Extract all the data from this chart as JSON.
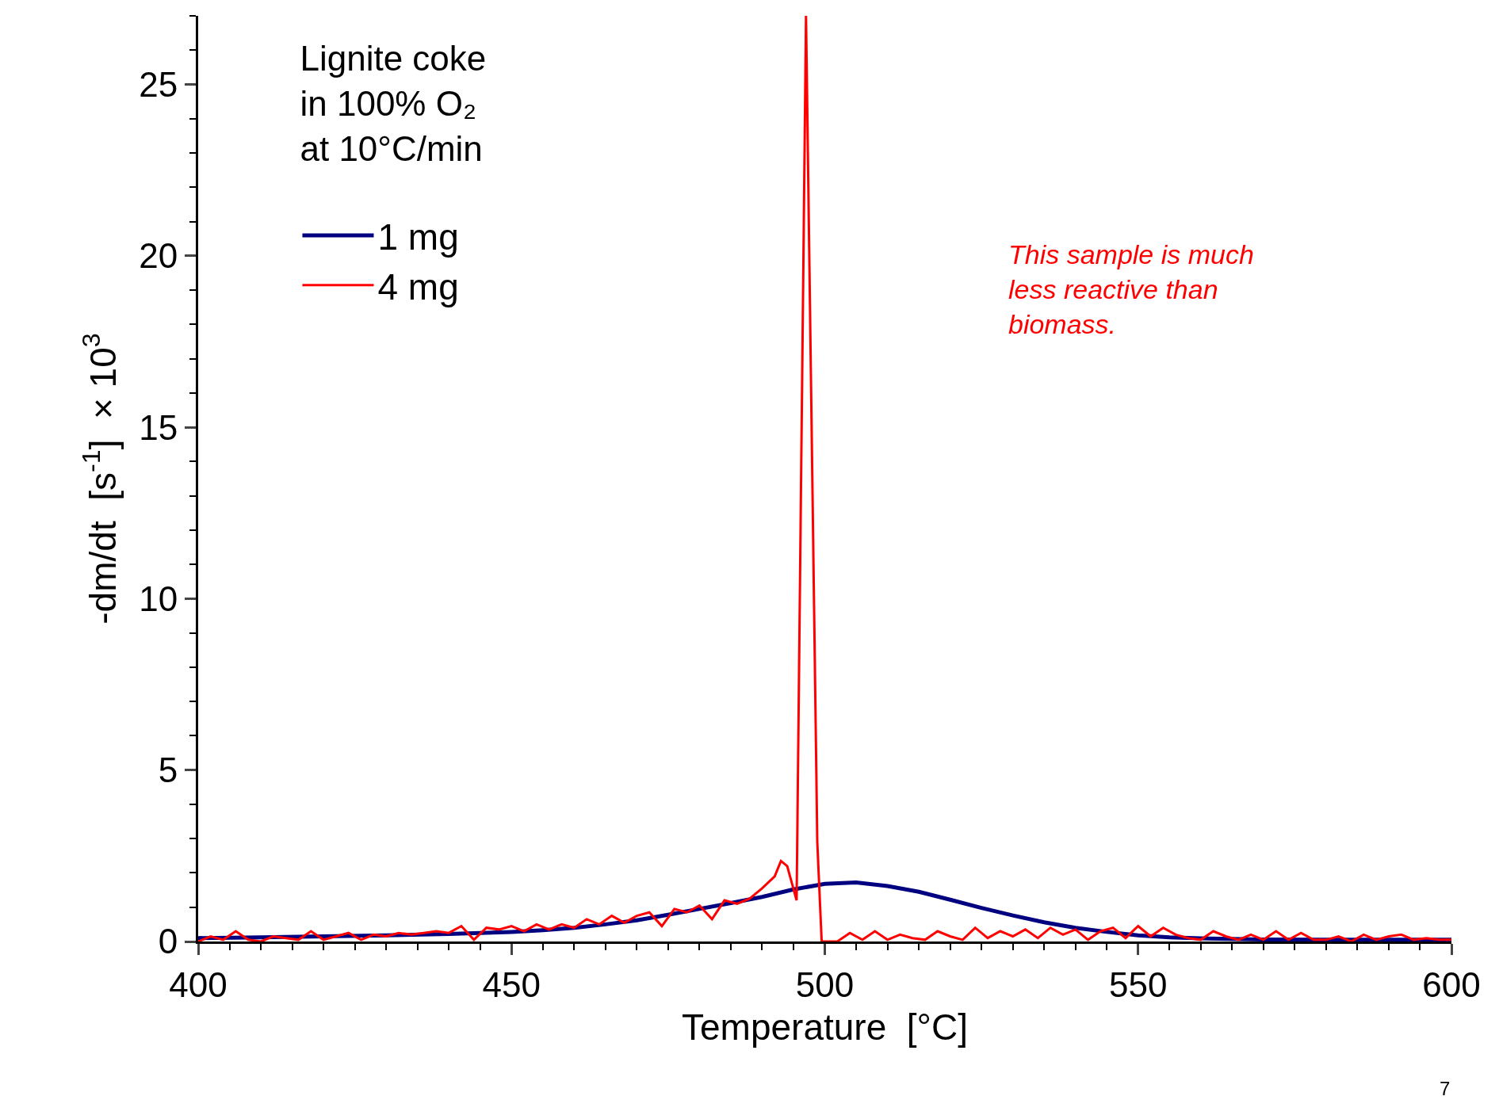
{
  "chart_data": {
    "type": "line",
    "xlabel": "Temperature  [°C]",
    "ylabel": "-dm/dt  [s$^{-1}$]  × 10$^{3}$",
    "legend_title": "Lignite coke\nin 100% O₂\nat 10°C/min",
    "legend": "top left",
    "xlim": [
      400,
      600
    ],
    "ylim": [
      0,
      27
    ],
    "xticks": [
      400,
      450,
      500,
      550,
      600
    ],
    "yticks": [
      0,
      5,
      10,
      15,
      20,
      25
    ],
    "annotations": [
      "This sample is much\nless reactive than\nbiomass.",
      "7"
    ],
    "series": [
      {
        "name": "1 mg",
        "color": "#000080",
        "x": [
          400,
          410,
          420,
          430,
          440,
          450,
          455,
          460,
          465,
          470,
          475,
          480,
          485,
          490,
          495,
          500,
          505,
          510,
          515,
          520,
          525,
          530,
          535,
          540,
          545,
          550,
          555,
          560,
          570,
          580,
          590,
          600
        ],
        "values": [
          0.1,
          0.12,
          0.15,
          0.18,
          0.22,
          0.28,
          0.33,
          0.4,
          0.5,
          0.62,
          0.78,
          0.95,
          1.12,
          1.3,
          1.52,
          1.68,
          1.72,
          1.62,
          1.45,
          1.22,
          0.98,
          0.76,
          0.56,
          0.4,
          0.28,
          0.18,
          0.12,
          0.09,
          0.06,
          0.05,
          0.05,
          0.05
        ]
      },
      {
        "name": "4 mg",
        "color": "#ff0000",
        "x": [
          400,
          402,
          404,
          406,
          408,
          410,
          412,
          414,
          416,
          418,
          420,
          422,
          424,
          426,
          428,
          430,
          432,
          434,
          436,
          438,
          440,
          442,
          444,
          446,
          448,
          450,
          452,
          454,
          456,
          458,
          460,
          462,
          464,
          466,
          468,
          470,
          472,
          474,
          476,
          478,
          480,
          482,
          484,
          486,
          488,
          490,
          492,
          493,
          494,
          495.5,
          497,
          498.8,
          499.5,
          502,
          504,
          506,
          508,
          510,
          512,
          514,
          516,
          518,
          520,
          522,
          524,
          526,
          528,
          530,
          532,
          534,
          536,
          538,
          540,
          542,
          544,
          546,
          548,
          550,
          552,
          554,
          556,
          558,
          560,
          562,
          564,
          566,
          568,
          570,
          572,
          574,
          576,
          578,
          580,
          582,
          584,
          586,
          588,
          590,
          592,
          594,
          596,
          598,
          600
        ],
        "values": [
          0.0,
          0.15,
          0.05,
          0.3,
          0.05,
          0.0,
          0.15,
          0.1,
          0.05,
          0.3,
          0.05,
          0.15,
          0.25,
          0.05,
          0.2,
          0.15,
          0.25,
          0.2,
          0.25,
          0.3,
          0.25,
          0.45,
          0.05,
          0.4,
          0.35,
          0.45,
          0.3,
          0.5,
          0.35,
          0.5,
          0.4,
          0.65,
          0.5,
          0.75,
          0.55,
          0.75,
          0.85,
          0.45,
          0.95,
          0.85,
          1.05,
          0.65,
          1.2,
          1.1,
          1.25,
          1.55,
          1.9,
          2.35,
          2.2,
          1.2,
          27,
          2.9,
          0.0,
          0.0,
          0.25,
          0.05,
          0.3,
          0.05,
          0.2,
          0.1,
          0.05,
          0.3,
          0.15,
          0.05,
          0.4,
          0.1,
          0.3,
          0.15,
          0.35,
          0.1,
          0.4,
          0.2,
          0.35,
          0.05,
          0.3,
          0.4,
          0.1,
          0.45,
          0.15,
          0.4,
          0.2,
          0.1,
          0.05,
          0.3,
          0.15,
          0.05,
          0.2,
          0.05,
          0.3,
          0.05,
          0.25,
          0.05,
          0.05,
          0.15,
          0.0,
          0.2,
          0.05,
          0.15,
          0.2,
          0.05,
          0.1,
          0.05,
          0.05
        ]
      }
    ]
  }
}
